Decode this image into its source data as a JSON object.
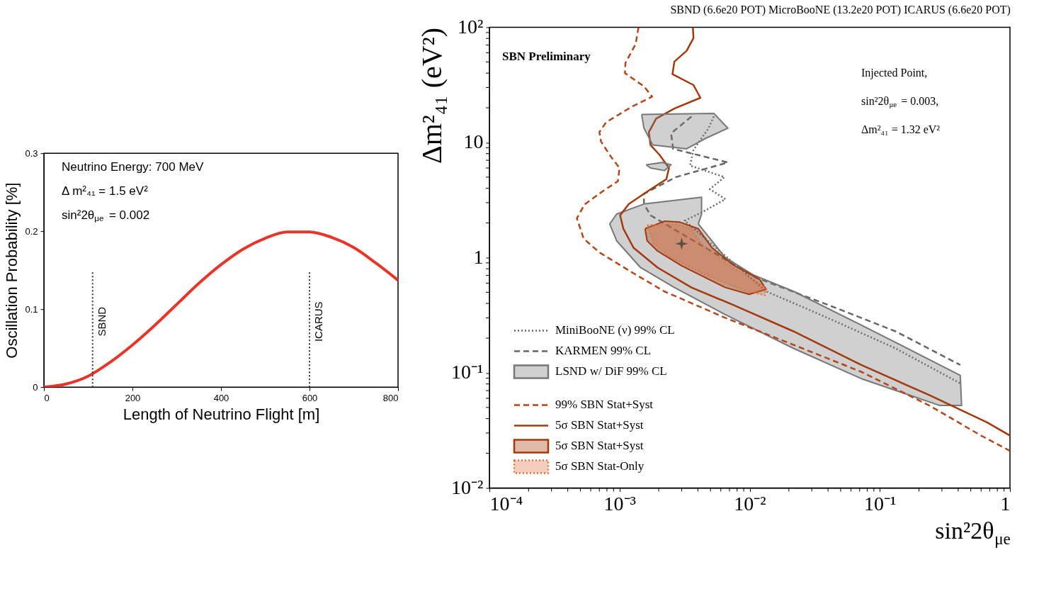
{
  "chart_data": [
    {
      "type": "line",
      "xlabel": "Length of Neutrino Flight [m]",
      "ylabel": "Oscillation Probability [%]",
      "annotations": [
        "Neutrino Energy: 700 MeV",
        "Δ m²₄₁ = 1.5 eV²",
        "sin²2θ$_{μe}$ = 0.002"
      ],
      "x": [
        0,
        50,
        100,
        150,
        200,
        250,
        300,
        350,
        400,
        450,
        500,
        550,
        600,
        650,
        700,
        750,
        800
      ],
      "series": [
        {
          "color": "#e8352a",
          "values": [
            0,
            0.004,
            0.014,
            0.032,
            0.054,
            0.079,
            0.106,
            0.133,
            0.157,
            0.177,
            0.191,
            0.199,
            0.199,
            0.192,
            0.179,
            0.159,
            0.137
          ]
        }
      ],
      "xlim": [
        0,
        800
      ],
      "xticks": [
        0,
        200,
        400,
        600,
        800
      ],
      "ylim": [
        0,
        0.3
      ],
      "yticks": [
        0,
        0.1,
        0.2,
        0.3
      ],
      "ref_lines": [
        {
          "axis": "x",
          "value": 110,
          "label": "SBND",
          "line_style": "dotted",
          "color": "#333333"
        },
        {
          "axis": "x",
          "value": 600,
          "label": "ICARUS",
          "line_style": "dotted",
          "color": "#333333"
        }
      ],
      "grid": false,
      "legend": false,
      "marker": "none",
      "line_style": "solid"
    },
    {
      "type": "line",
      "title": "SBND (6.6e20 POT) MicroBooNE (13.2e20 POT) ICARUS (6.6e20 POT)",
      "xlabel": "sin²2θ$_{μe}$",
      "ylabel": "Δm²₄₁ (eV²)",
      "log": "xy",
      "annotations": [
        "SBN Preliminary",
        "Injected Point,",
        "sin²2θ$_{μe}$ = 0.003,",
        "Δm²₄₁ = 1.32 eV²"
      ],
      "series": [
        {
          "name": "MiniBooNE (ν) 99% CL",
          "type": "line",
          "line_style": "dotted",
          "color": "#666666",
          "x": [
            0.0053,
            0.00483,
            0.0037,
            0.00348,
            0.0064,
            0.00494,
            0.0065,
            0.00455,
            0.00317,
            0.0134,
            0.0397,
            0.132,
            0.415
          ],
          "values": [
            16.8,
            13.3,
            8.6,
            6.3,
            5.0,
            3.93,
            3.22,
            2.56,
            2.09,
            0.51,
            0.3,
            0.163,
            0.081
          ]
        },
        {
          "name": "KARMEN 99% CL",
          "type": "line",
          "line_style": "dashed",
          "color": "#666666",
          "x": [
            0.00357,
            0.00249,
            0.00258,
            0.0068,
            0.00271,
            0.00154,
            0.00154,
            0.00173,
            0.0112,
            0.0397,
            0.132,
            0.415
          ],
          "values": [
            16.8,
            12.0,
            8.8,
            6.7,
            5.0,
            3.58,
            2.92,
            2.33,
            0.67,
            0.39,
            0.229,
            0.117
          ]
        },
        {
          "name": "LSND w/ DiF 99% CL",
          "type": "area",
          "color": "#777777",
          "x": [
            0.00154,
            0.00427,
            0.00427,
            0.00403,
            0.0065,
            0.0106,
            0.0217,
            0.072,
            0.289,
            0.415,
            0.425,
            0.289,
            0.072,
            0.0217,
            0.0065,
            0.00264,
            0.00145,
            0.00095,
            0.00084,
            0.00095,
            0.00154
          ],
          "values": [
            2.92,
            3.35,
            2.39,
            1.96,
            1.0,
            0.71,
            0.51,
            0.26,
            0.117,
            0.095,
            0.052,
            0.052,
            0.089,
            0.163,
            0.32,
            0.55,
            0.82,
            1.4,
            1.96,
            2.39,
            2.92
          ]
        },
        {
          "name": "99% SBN Stat+Syst",
          "type": "line",
          "line_style": "dashed",
          "color": "#b5461a",
          "x": [
            0.0014,
            0.00133,
            0.00111,
            0.0011,
            0.00154,
            0.00178,
            0.00125,
            0.00079,
            0.0007,
            0.00072,
            0.00086,
            0.001,
            0.00097,
            0.00075,
            0.00054,
            0.00047,
            0.00053,
            0.0007,
            0.00121,
            0.0022,
            0.0065,
            0.0217,
            0.072,
            0.24,
            0.6,
            1.0
          ],
          "values": [
            100,
            71.5,
            49,
            40,
            30.7,
            25,
            20.5,
            15,
            12.3,
            10.2,
            7.5,
            6.0,
            4.6,
            3.8,
            2.9,
            2.2,
            1.46,
            1.11,
            0.76,
            0.51,
            0.3,
            0.175,
            0.102,
            0.052,
            0.0285,
            0.021
          ]
        },
        {
          "name": "5σ SBN Stat+Syst",
          "type": "line",
          "line_style": "solid",
          "color": "#a33a0c",
          "x": [
            0.00366,
            0.0037,
            0.00328,
            0.00264,
            0.00255,
            0.0037,
            0.00418,
            0.00264,
            0.00191,
            0.00168,
            0.00173,
            0.00203,
            0.0024,
            0.00229,
            0.00168,
            0.00118,
            0.00101,
            0.00107,
            0.00128,
            0.00196,
            0.00357,
            0.0074,
            0.0217,
            0.072,
            0.24,
            0.67,
            1.0
          ],
          "values": [
            100,
            80.7,
            62.5,
            50.4,
            39.1,
            31.5,
            24.4,
            19.7,
            16.1,
            12.3,
            9.5,
            7.8,
            6.0,
            4.8,
            3.83,
            2.92,
            2.33,
            1.78,
            1.22,
            0.82,
            0.55,
            0.39,
            0.229,
            0.117,
            0.064,
            0.037,
            0.0285
          ]
        },
        {
          "name": "5σ SBN Stat+Syst",
          "type": "area",
          "line_style": "solid",
          "color": "#a33a0c",
          "x": [
            0.00157,
            0.00221,
            0.00288,
            0.00403,
            0.00513,
            0.0074,
            0.0119,
            0.0134,
            0.0099,
            0.0065,
            0.00299,
            0.00196,
            0.00163,
            0.00157
          ],
          "values": [
            1.78,
            2.07,
            2.04,
            1.78,
            1.22,
            0.87,
            0.65,
            0.53,
            0.48,
            0.55,
            0.85,
            1.14,
            1.4,
            1.78
          ]
        },
        {
          "name": "5σ SBN Stat-Only",
          "type": "area",
          "line_style": "dotted",
          "color": "#e07040",
          "x": [
            0.00163,
            0.00271,
            0.00357,
            0.00427,
            0.0074,
            0.0134,
            0.0131,
            0.0094,
            0.00455,
            0.00249,
            0.00184,
            0.00163
          ],
          "values": [
            1.91,
            1.96,
            1.78,
            1.31,
            0.82,
            0.55,
            0.47,
            0.51,
            0.71,
            1.0,
            1.31,
            1.91
          ]
        },
        {
          "type": "area",
          "color": "#777777",
          "x": [
            0.00148,
            0.0053,
            0.0068,
            0.00455,
            0.00328,
            0.0018,
            0.00154,
            0.00148
          ],
          "values": [
            17.5,
            17.9,
            13.3,
            10.8,
            8.8,
            9.5,
            13.3,
            17.5
          ]
        },
        {
          "type": "area",
          "color": "#777777",
          "x": [
            0.0016,
            0.00213,
            0.00249,
            0.00221,
            0.00173,
            0.0016
          ],
          "values": [
            6.4,
            6.7,
            6.4,
            5.7,
            6.0,
            6.4
          ]
        },
        {
          "type": "scatter",
          "marker": "star",
          "color": "#333333",
          "x": [
            0.003
          ],
          "values": [
            1.32
          ]
        }
      ],
      "xlim": [
        0.0001,
        1
      ],
      "ylim": [
        0.01,
        100
      ],
      "xticks": [
        {
          "value": 0.0001,
          "label": "10⁻⁴"
        },
        {
          "value": 0.0002,
          "label": null
        },
        {
          "value": 0.0003,
          "label": null
        },
        {
          "value": 0.0004,
          "label": null
        },
        {
          "value": 0.0005,
          "label": null
        },
        {
          "value": 0.0006,
          "label": null
        },
        {
          "value": 0.0007,
          "label": null
        },
        {
          "value": 0.0008,
          "label": null
        },
        {
          "value": 0.0009,
          "label": null
        },
        {
          "value": 0.001,
          "label": "10⁻³"
        },
        {
          "value": 0.002,
          "label": null
        },
        {
          "value": 0.003,
          "label": null
        },
        {
          "value": 0.004,
          "label": null
        },
        {
          "value": 0.005,
          "label": null
        },
        {
          "value": 0.006,
          "label": null
        },
        {
          "value": 0.007,
          "label": null
        },
        {
          "value": 0.008,
          "label": null
        },
        {
          "value": 0.009,
          "label": null
        },
        {
          "value": 0.01,
          "label": "10⁻²"
        },
        {
          "value": 0.02,
          "label": null
        },
        {
          "value": 0.03,
          "label": null
        },
        {
          "value": 0.04,
          "label": null
        },
        {
          "value": 0.05,
          "label": null
        },
        {
          "value": 0.06,
          "label": null
        },
        {
          "value": 0.07,
          "label": null
        },
        {
          "value": 0.08,
          "label": null
        },
        {
          "value": 0.09,
          "label": null
        },
        {
          "value": 0.1,
          "label": "10⁻¹"
        },
        {
          "value": 0.2,
          "label": null
        },
        {
          "value": 0.3,
          "label": null
        },
        {
          "value": 0.4,
          "label": null
        },
        {
          "value": 0.5,
          "label": null
        },
        {
          "value": 0.6,
          "label": null
        },
        {
          "value": 0.7,
          "label": null
        },
        {
          "value": 0.8,
          "label": null
        },
        {
          "value": 0.9,
          "label": null
        },
        1
      ],
      "yticks": [
        {
          "value": 0.01,
          "label": "10⁻²"
        },
        {
          "value": 0.02,
          "label": null
        },
        {
          "value": 0.03,
          "label": null
        },
        {
          "value": 0.04,
          "label": null
        },
        {
          "value": 0.05,
          "label": null
        },
        {
          "value": 0.06,
          "label": null
        },
        {
          "value": 0.07,
          "label": null
        },
        {
          "value": 0.08,
          "label": null
        },
        {
          "value": 0.09,
          "label": null
        },
        {
          "value": 0.1,
          "label": "10⁻¹"
        },
        {
          "value": 0.2,
          "label": null
        },
        {
          "value": 0.3,
          "label": null
        },
        {
          "value": 0.4,
          "label": null
        },
        {
          "value": 0.5,
          "label": null
        },
        {
          "value": 0.6,
          "label": null
        },
        {
          "value": 0.7,
          "label": null
        },
        {
          "value": 0.8,
          "label": null
        },
        {
          "value": 0.9,
          "label": null
        },
        1,
        {
          "value": 2,
          "label": null
        },
        {
          "value": 3,
          "label": null
        },
        {
          "value": 4,
          "label": null
        },
        {
          "value": 5,
          "label": null
        },
        {
          "value": 6,
          "label": null
        },
        {
          "value": 7,
          "label": null
        },
        {
          "value": 8,
          "label": null
        },
        {
          "value": 9,
          "label": null
        },
        10,
        {
          "value": 20,
          "label": null
        },
        {
          "value": 30,
          "label": null
        },
        {
          "value": 40,
          "label": null
        },
        {
          "value": 50,
          "label": null
        },
        {
          "value": 60,
          "label": null
        },
        {
          "value": 70,
          "label": null
        },
        {
          "value": 80,
          "label": null
        },
        {
          "value": 90,
          "label": null
        },
        {
          "value": 100,
          "label": "10²"
        }
      ],
      "grid": false,
      "legend": "bottom left"
    }
  ]
}
